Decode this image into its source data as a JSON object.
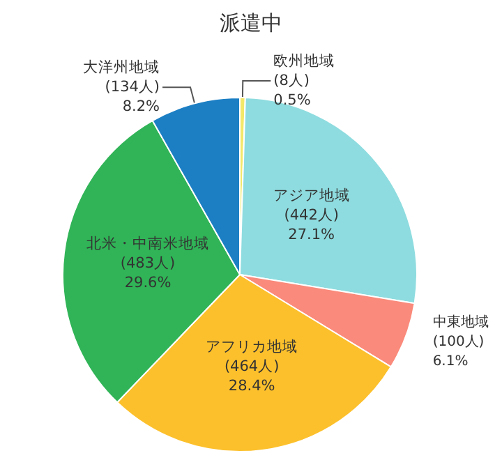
{
  "chart_data": {
    "type": "pie",
    "title": "派遣中",
    "categories": [
      "欧州地域",
      "アジア地域",
      "中東地域",
      "アフリカ地域",
      "北米・中南米地域",
      "大洋州地域"
    ],
    "values": [
      8,
      442,
      100,
      464,
      483,
      134
    ],
    "value_labels": [
      "(8人)\n0.5%",
      "(442人)\n27.1%",
      "(100人)\n6.1%",
      "(464人)\n28.4%",
      "(483人)\n29.6%",
      "(134人)\n8.2%"
    ],
    "colors": [
      "#f3e86a",
      "#8edcdf",
      "#fa8a7b",
      "#fcc02c",
      "#30b457",
      "#1c7fc4"
    ]
  }
}
